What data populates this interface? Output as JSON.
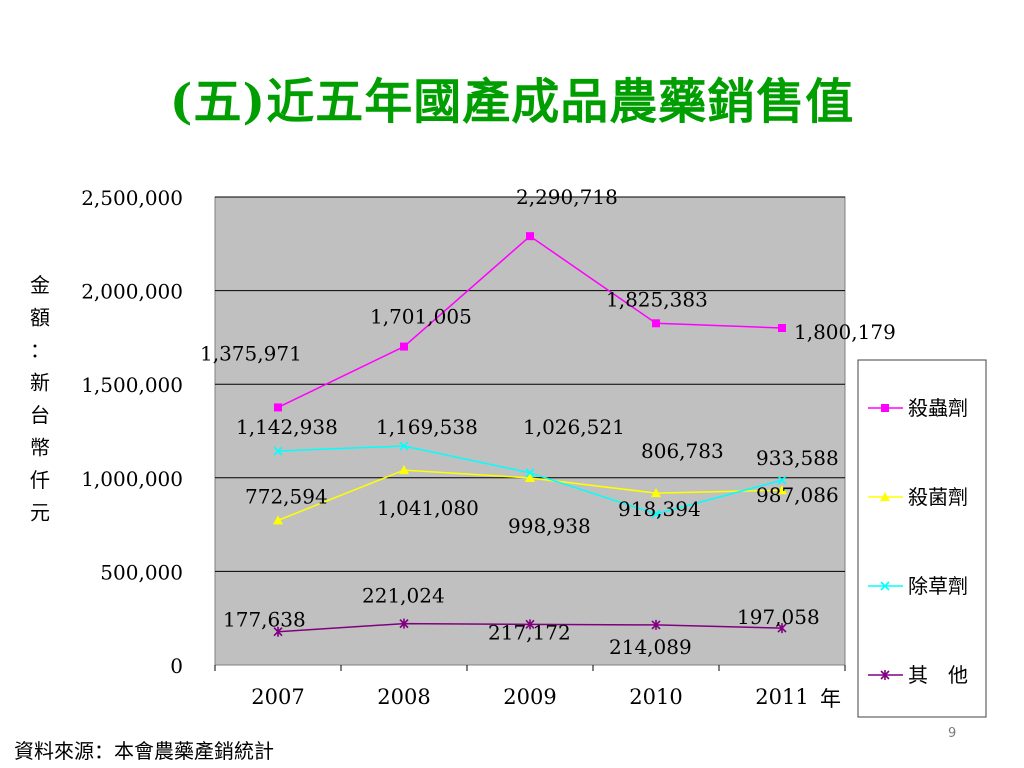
{
  "slide": {
    "title": "(五)近五年國產成品農藥銷售值",
    "source": "資料來源：本會農藥產銷統計",
    "page_number": "9"
  },
  "chart_data": {
    "type": "line",
    "categories": [
      "2007",
      "2008",
      "2009",
      "2010",
      "2011"
    ],
    "x_unit": "年",
    "ylabel": "金額：新台幣仟元",
    "ylim": [
      0,
      2500000
    ],
    "yticks": [
      "0",
      "500,000",
      "1,000,000",
      "1,500,000",
      "2,000,000",
      "2,500,000"
    ],
    "grid": true,
    "plot_background": "#c0c0c0",
    "legend_position": "right",
    "series": [
      {
        "name": "殺蟲劑",
        "color": "#ff00ff",
        "marker": "square",
        "values": [
          1375971,
          1701005,
          2290718,
          1825383,
          1800179
        ],
        "labels": [
          "1,375,971",
          "1,701,005",
          "2,290,718",
          "1,825,383",
          "1,800,179"
        ]
      },
      {
        "name": "殺菌劑",
        "color": "#ffff00",
        "marker": "triangle",
        "values": [
          772594,
          1041080,
          998938,
          918394,
          933588
        ],
        "labels": [
          "772,594",
          "1,041,080",
          "998,938",
          "918,394",
          "933,588"
        ]
      },
      {
        "name": "除草劑",
        "color": "#00ffff",
        "marker": "x",
        "values": [
          1142938,
          1169538,
          1026521,
          806783,
          987086
        ],
        "labels": [
          "1,142,938",
          "1,169,538",
          "1,026,521",
          "806,783",
          "987,086"
        ]
      },
      {
        "name": "其　他",
        "color": "#800080",
        "marker": "star",
        "values": [
          177638,
          221024,
          217172,
          214089,
          197058
        ],
        "labels": [
          "177,638",
          "221,024",
          "217,172",
          "214,089",
          "197,058"
        ]
      }
    ]
  }
}
